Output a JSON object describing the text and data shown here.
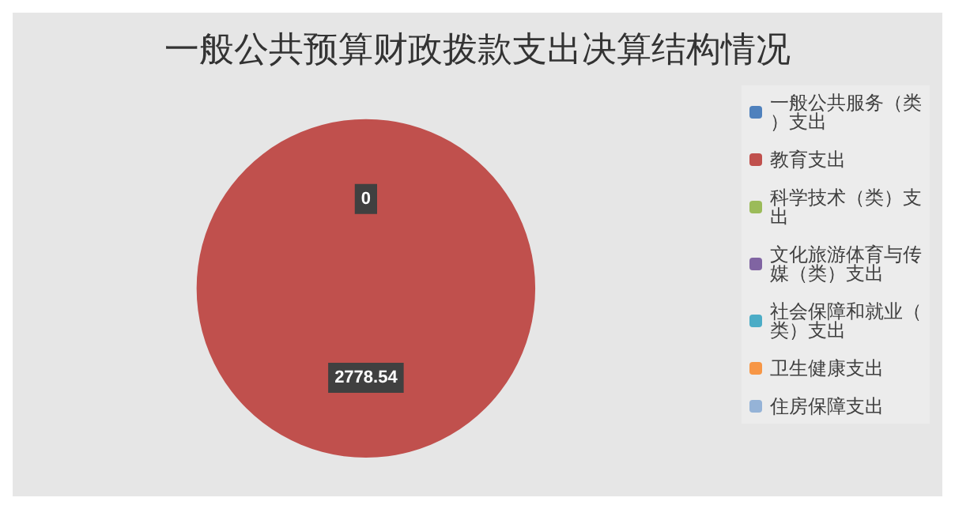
{
  "chart_data": {
    "type": "pie",
    "title": "一般公共预算财政拨款支出决算结构情况",
    "categories": [
      "一般公共服务（类）支出",
      "教育支出",
      "科学技术（类）支出",
      "文化旅游体育与传媒（类）支出",
      "社会保障和就业（类）支出",
      "卫生健康支出",
      "住房保障支出"
    ],
    "values": [
      0,
      2778.54,
      0,
      0,
      0,
      0,
      0
    ],
    "value_labels": [
      "0",
      "2778.54",
      null,
      null,
      null,
      null,
      null
    ],
    "colors": [
      "#4f81bd",
      "#c0504d",
      "#9bbb59",
      "#8064a2",
      "#4bacc6",
      "#f79646",
      "#95b3d7"
    ],
    "legend": "right"
  }
}
